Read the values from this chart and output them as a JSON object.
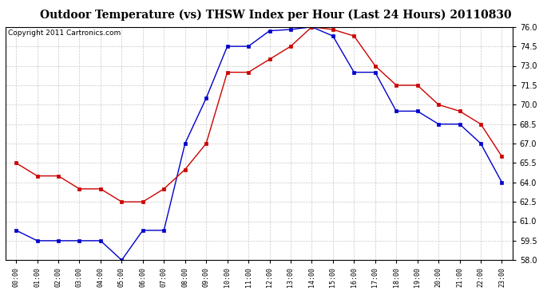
{
  "title": "Outdoor Temperature (vs) THSW Index per Hour (Last 24 Hours) 20110830",
  "copyright": "Copyright 2011 Cartronics.com",
  "hours": [
    "00:00",
    "01:00",
    "02:00",
    "03:00",
    "04:00",
    "05:00",
    "06:00",
    "07:00",
    "08:00",
    "09:00",
    "10:00",
    "11:00",
    "12:00",
    "13:00",
    "14:00",
    "15:00",
    "16:00",
    "17:00",
    "18:00",
    "19:00",
    "20:00",
    "21:00",
    "22:00",
    "23:00"
  ],
  "temp_blue": [
    60.3,
    59.5,
    59.5,
    59.5,
    59.5,
    58.0,
    60.3,
    60.3,
    67.0,
    70.5,
    74.5,
    74.5,
    75.7,
    75.8,
    76.0,
    75.3,
    72.5,
    72.5,
    69.5,
    69.5,
    68.5,
    68.5,
    67.0,
    64.0
  ],
  "temp_red": [
    65.5,
    64.5,
    64.5,
    63.5,
    63.5,
    62.5,
    62.5,
    63.5,
    65.0,
    67.0,
    72.5,
    72.5,
    73.5,
    74.5,
    76.0,
    75.8,
    75.3,
    73.0,
    71.5,
    71.5,
    70.0,
    69.5,
    68.5,
    66.0
  ],
  "ylim": [
    58.0,
    76.0
  ],
  "yticks": [
    58.0,
    59.5,
    61.0,
    62.5,
    64.0,
    65.5,
    67.0,
    68.5,
    70.0,
    71.5,
    73.0,
    74.5,
    76.0
  ],
  "blue_color": "#0000cc",
  "red_color": "#cc0000",
  "bg_color": "#ffffff",
  "grid_color": "#bbbbbb",
  "title_fontsize": 10,
  "copyright_fontsize": 6.5
}
